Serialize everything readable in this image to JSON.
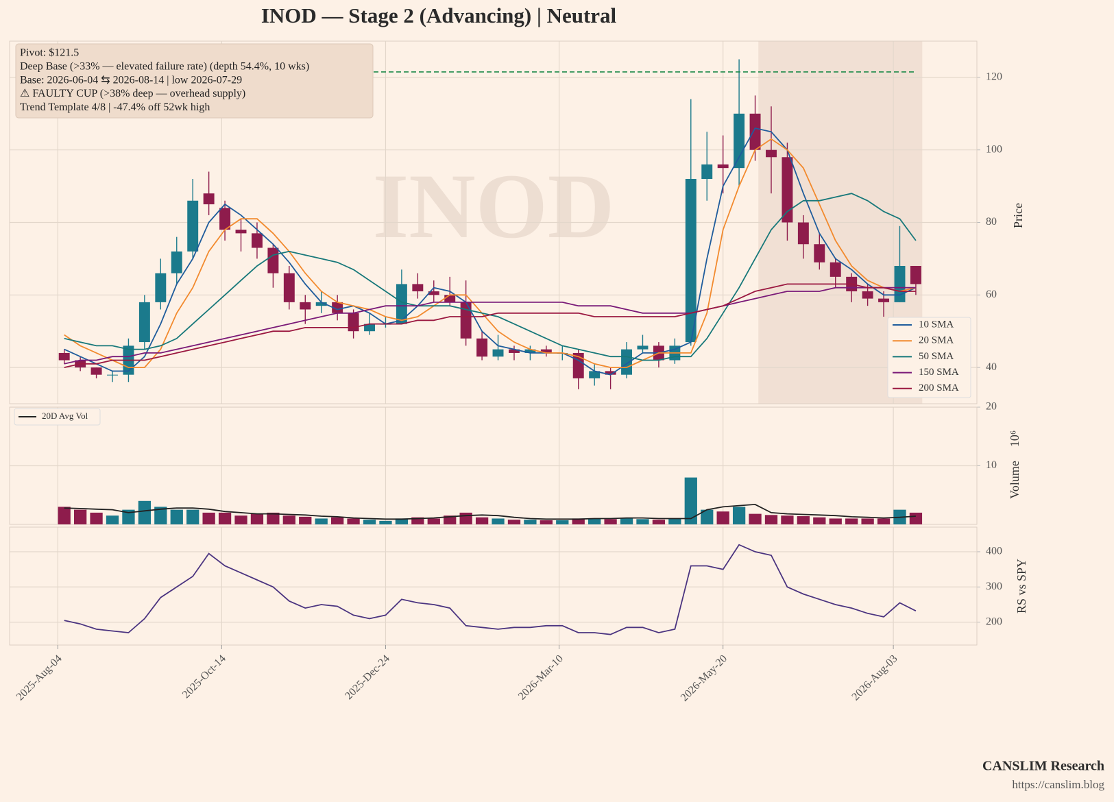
{
  "chart_data": [
    {
      "type": "candlestick",
      "title": "INOD  —  Stage 2 (Advancing)  |  Neutral",
      "watermark": "INOD",
      "ylabel": "Price",
      "ylim": [
        30,
        130
      ],
      "yticks": [
        40,
        60,
        80,
        100,
        120
      ],
      "grid": true,
      "xlim": [
        "2025-Jul-14",
        "2026-Sep-08"
      ],
      "up_color": "#1b7a8c",
      "down_color": "#8e1c4c",
      "x": [
        "2025-Aug-04",
        "2025-Aug-11",
        "2025-Aug-18",
        "2025-Aug-25",
        "2025-Sep-01",
        "2025-Sep-08",
        "2025-Sep-15",
        "2025-Sep-22",
        "2025-Sep-29",
        "2025-Oct-06",
        "2025-Oct-13",
        "2025-Oct-20",
        "2025-Oct-27",
        "2025-Nov-03",
        "2025-Nov-10",
        "2025-Nov-17",
        "2025-Nov-24",
        "2025-Dec-01",
        "2025-Dec-08",
        "2025-Dec-15",
        "2025-Dec-22",
        "2025-Dec-29",
        "2026-Jan-05",
        "2026-Jan-12",
        "2026-Jan-19",
        "2026-Jan-26",
        "2026-Feb-02",
        "2026-Feb-09",
        "2026-Feb-16",
        "2026-Feb-23",
        "2026-Mar-02",
        "2026-Mar-09",
        "2026-Mar-16",
        "2026-Mar-23",
        "2026-Mar-30",
        "2026-Apr-06",
        "2026-Apr-13",
        "2026-Apr-20",
        "2026-Apr-27",
        "2026-May-04",
        "2026-May-11",
        "2026-May-18",
        "2026-May-25",
        "2026-Jun-01",
        "2026-Jun-08",
        "2026-Jun-15",
        "2026-Jun-22",
        "2026-Jun-29",
        "2026-Jul-06",
        "2026-Jul-13",
        "2026-Jul-20",
        "2026-Jul-27",
        "2026-Aug-03",
        "2026-Aug-10"
      ],
      "open": [
        44,
        42,
        40,
        38,
        38,
        47,
        58,
        66,
        72,
        88,
        84,
        78,
        77,
        73,
        66,
        58,
        57,
        58,
        55,
        50,
        52,
        52,
        63,
        61,
        60,
        58,
        48,
        43,
        45,
        44,
        45,
        44,
        44,
        37,
        39,
        38,
        45,
        46,
        42,
        47,
        92,
        96,
        95,
        110,
        100,
        98,
        80,
        74,
        69,
        65,
        61,
        59,
        58,
        68
      ],
      "high": [
        45,
        43,
        40,
        39,
        48,
        60,
        70,
        76,
        92,
        94,
        86,
        81,
        80,
        74,
        68,
        60,
        61,
        60,
        56,
        55,
        54,
        67,
        66,
        64,
        65,
        64,
        50,
        49,
        46,
        46,
        46,
        46,
        45,
        41,
        40,
        47,
        49,
        47,
        48,
        114,
        105,
        104,
        125,
        115,
        112,
        102,
        82,
        77,
        70,
        66,
        63,
        61,
        79,
        67
      ],
      "low": [
        41,
        39,
        37,
        36,
        36,
        45,
        56,
        63,
        70,
        82,
        75,
        72,
        70,
        62,
        56,
        52,
        55,
        53,
        48,
        49,
        51,
        52,
        59,
        58,
        57,
        46,
        42,
        42,
        42,
        42,
        43,
        42,
        34,
        35,
        34,
        37,
        44,
        40,
        41,
        46,
        86,
        88,
        90,
        97,
        88,
        75,
        70,
        67,
        62,
        58,
        57,
        54,
        58,
        60
      ],
      "close": [
        42,
        40,
        38,
        38,
        46,
        58,
        66,
        72,
        86,
        85,
        78,
        77,
        73,
        66,
        58,
        56,
        58,
        55,
        50,
        52,
        52,
        63,
        61,
        60,
        58,
        48,
        43,
        45,
        44,
        45,
        44,
        44,
        37,
        39,
        38,
        45,
        46,
        42,
        46,
        92,
        96,
        95,
        110,
        100,
        98,
        80,
        74,
        69,
        65,
        61,
        59,
        58,
        68,
        63
      ],
      "pivot": 121.5,
      "pivot_color": "#1e8a4a",
      "base_span": [
        "2026-06-04",
        "2026-08-14"
      ],
      "annotations": [
        "Pivot: $121.5",
        "Deep Base (>33% — elevated failure rate)  (depth 54.4%, 10 wks)",
        "Base: 2026-06-04 ⇆ 2026-08-14  |  low 2026-07-29",
        "⚠ FAULTY CUP (>38% deep — overhead supply)",
        "Trend Template 4/8  |  -47.4% off 52wk high"
      ],
      "series": [
        {
          "name": "10 SMA",
          "color": "#1f5c9c",
          "values": [
            45,
            43,
            41,
            39,
            39,
            43,
            52,
            63,
            70,
            80,
            85,
            82,
            78,
            74,
            69,
            63,
            58,
            56,
            57,
            55,
            52,
            53,
            57,
            62,
            61,
            58,
            50,
            46,
            45,
            44,
            44,
            44,
            42,
            39,
            38,
            41,
            44,
            44,
            45,
            47,
            70,
            90,
            98,
            106,
            105,
            100,
            88,
            77,
            70,
            67,
            63,
            60,
            60,
            62
          ]
        },
        {
          "name": "20 SMA",
          "color": "#f28a2e",
          "values": [
            49,
            46,
            44,
            42,
            40,
            40,
            45,
            55,
            62,
            72,
            78,
            81,
            81,
            77,
            72,
            66,
            61,
            58,
            57,
            56,
            54,
            53,
            54,
            57,
            60,
            60,
            55,
            50,
            47,
            45,
            44,
            44,
            43,
            41,
            40,
            40,
            42,
            44,
            44,
            44,
            55,
            78,
            90,
            100,
            103,
            100,
            95,
            85,
            75,
            68,
            64,
            62,
            61,
            62
          ]
        },
        {
          "name": "50 SMA",
          "color": "#17787a",
          "values": [
            48,
            47,
            46,
            46,
            45,
            45,
            46,
            48,
            52,
            56,
            60,
            64,
            68,
            71,
            72,
            71,
            70,
            69,
            67,
            64,
            61,
            58,
            57,
            57,
            57,
            56,
            55,
            54,
            52,
            50,
            48,
            46,
            45,
            44,
            43,
            43,
            42,
            42,
            43,
            43,
            48,
            55,
            62,
            70,
            78,
            83,
            86,
            86,
            87,
            88,
            86,
            83,
            81,
            75
          ]
        },
        {
          "name": "150 SMA",
          "color": "#7a1a78",
          "values": [
            41,
            42,
            42,
            43,
            43,
            44,
            44,
            45,
            46,
            47,
            48,
            49,
            50,
            51,
            52,
            53,
            54,
            55,
            55,
            56,
            57,
            57,
            57,
            58,
            58,
            58,
            58,
            58,
            58,
            58,
            58,
            58,
            57,
            57,
            57,
            56,
            55,
            55,
            55,
            55,
            56,
            57,
            58,
            59,
            60,
            61,
            61,
            61,
            62,
            62,
            62,
            62,
            62,
            62
          ]
        },
        {
          "name": "200 SMA",
          "color": "#9b1840",
          "values": [
            40,
            41,
            41,
            42,
            42,
            42,
            43,
            44,
            45,
            46,
            47,
            48,
            49,
            50,
            50,
            51,
            51,
            51,
            51,
            52,
            52,
            52,
            53,
            53,
            54,
            54,
            54,
            55,
            55,
            55,
            55,
            55,
            55,
            54,
            54,
            54,
            54,
            54,
            54,
            55,
            56,
            57,
            59,
            61,
            62,
            63,
            63,
            63,
            63,
            63,
            62,
            62,
            61,
            61
          ]
        }
      ]
    },
    {
      "type": "bar",
      "ylabel": "Volume",
      "scale_label": "10⁶",
      "ylim": [
        0,
        20
      ],
      "yticks": [
        10,
        20
      ],
      "grid": true,
      "values": [
        3.0,
        2.5,
        2.0,
        1.5,
        2.5,
        4.0,
        3.0,
        2.5,
        2.5,
        2.0,
        2.0,
        1.5,
        1.8,
        2.0,
        1.5,
        1.3,
        1.0,
        1.2,
        1.0,
        0.8,
        0.6,
        1.0,
        1.2,
        1.0,
        1.5,
        2.0,
        1.2,
        1.0,
        0.8,
        0.8,
        0.7,
        0.7,
        1.0,
        1.0,
        0.9,
        1.0,
        0.9,
        0.8,
        1.0,
        8.0,
        2.5,
        2.2,
        3.0,
        1.8,
        1.6,
        1.5,
        1.4,
        1.2,
        1.0,
        1.0,
        1.0,
        1.0,
        2.5,
        2.0
      ],
      "series": [
        {
          "name": "20D Avg Vol",
          "color": "#222222",
          "values": [
            2.8,
            2.7,
            2.6,
            2.5,
            2.0,
            2.3,
            2.6,
            2.8,
            2.8,
            2.6,
            2.2,
            2.0,
            1.8,
            1.8,
            1.7,
            1.6,
            1.4,
            1.3,
            1.1,
            1.0,
            0.9,
            0.9,
            1.0,
            1.1,
            1.3,
            1.5,
            1.6,
            1.5,
            1.2,
            1.0,
            0.9,
            0.9,
            0.9,
            1.0,
            1.0,
            1.1,
            1.1,
            1.0,
            1.0,
            1.0,
            2.5,
            3.0,
            3.2,
            3.4,
            2.0,
            1.8,
            1.7,
            1.6,
            1.5,
            1.3,
            1.2,
            1.1,
            1.2,
            1.4
          ]
        }
      ]
    },
    {
      "type": "line",
      "ylabel": "RS vs SPY",
      "ylim": [
        135,
        470
      ],
      "yticks": [
        200,
        300,
        400
      ],
      "grid": true,
      "color": "#4b3480",
      "xticks": [
        "2025-Aug-04",
        "2025-Oct-14",
        "2025-Dec-24",
        "2026-Mar-10",
        "2026-May-20",
        "2026-Aug-03"
      ],
      "values": [
        205,
        195,
        180,
        175,
        170,
        210,
        270,
        300,
        330,
        395,
        360,
        340,
        320,
        300,
        260,
        240,
        250,
        245,
        220,
        210,
        220,
        265,
        255,
        250,
        240,
        190,
        185,
        180,
        185,
        185,
        190,
        190,
        170,
        170,
        165,
        185,
        185,
        170,
        180,
        360,
        360,
        350,
        420,
        400,
        390,
        300,
        280,
        265,
        250,
        240,
        225,
        215,
        255,
        232
      ]
    }
  ],
  "footer": {
    "brand": "CANSLIM Research",
    "url": "https://canslim.blog"
  }
}
